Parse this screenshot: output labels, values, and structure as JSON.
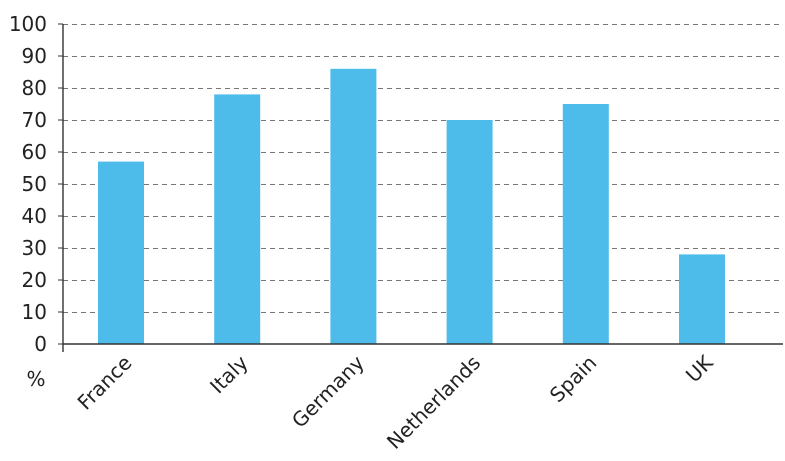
{
  "chart_data": {
    "type": "bar",
    "categories": [
      "France",
      "Italy",
      "Germany",
      "Netherlands",
      "Spain",
      "UK"
    ],
    "values": [
      57,
      78,
      86,
      70,
      75,
      28
    ],
    "ylabel": "%",
    "ylim": [
      0,
      100
    ],
    "yticks": [
      0,
      10,
      20,
      30,
      40,
      50,
      60,
      70,
      80,
      90,
      100
    ],
    "grid": true,
    "bar_color": "#4EBCEA"
  }
}
